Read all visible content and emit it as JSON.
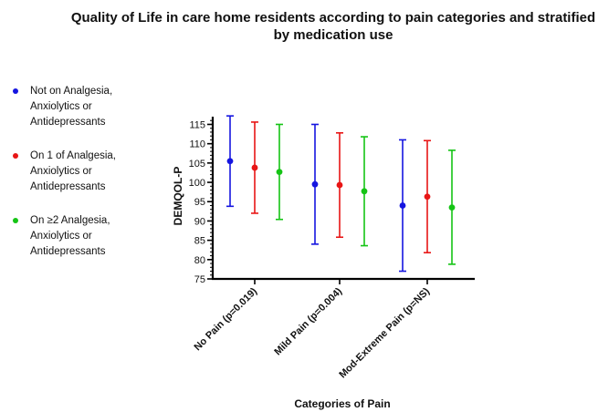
{
  "chart_data": {
    "type": "scatter",
    "title": "Quality of Life in care home residents according to pain categories and stratified by medication use",
    "xlabel": "Categories of Pain",
    "ylabel": "DEMQOL-P",
    "ylim": [
      75,
      117
    ],
    "yticks": [
      75,
      80,
      85,
      90,
      95,
      100,
      105,
      110,
      115
    ],
    "categories": [
      "No Pain (p=0.019)",
      "Mild Pain (p=0.004)",
      "Mod-Extreme Pain (p=NS)"
    ],
    "legend_position": "left",
    "grid": false,
    "series": [
      {
        "name": "Not on Analgesia, Anxiolytics or Antidepressants",
        "color": "#1515e0",
        "values": [
          105.5,
          99.5,
          94.0
        ],
        "lower": [
          93.8,
          84.0,
          77.0
        ],
        "upper": [
          117.2,
          115.0,
          111.0
        ]
      },
      {
        "name": "On 1 of Analgesia, Anxiolytics or Antidepressants",
        "color": "#e81515",
        "values": [
          103.8,
          99.3,
          96.3
        ],
        "lower": [
          92.0,
          85.8,
          81.8
        ],
        "upper": [
          115.6,
          112.8,
          110.8
        ]
      },
      {
        "name": "On ≥2 Analgesia, Anxiolytics or Antidepressants",
        "color": "#15c415",
        "values": [
          102.7,
          97.7,
          93.5
        ],
        "lower": [
          90.4,
          83.6,
          78.8
        ],
        "upper": [
          115.0,
          111.8,
          108.3
        ]
      }
    ]
  },
  "legend": {
    "items": [
      {
        "label": "Not on Analgesia,\nAnxiolytics or\nAntidepressants",
        "color": "#1515e0"
      },
      {
        "label": "On 1 of Analgesia,\nAnxiolytics or\nAntidepressants",
        "color": "#e81515"
      },
      {
        "label": "On ≥2 Analgesia,\nAnxiolytics or\nAntidepressants",
        "color": "#15c415"
      }
    ]
  }
}
